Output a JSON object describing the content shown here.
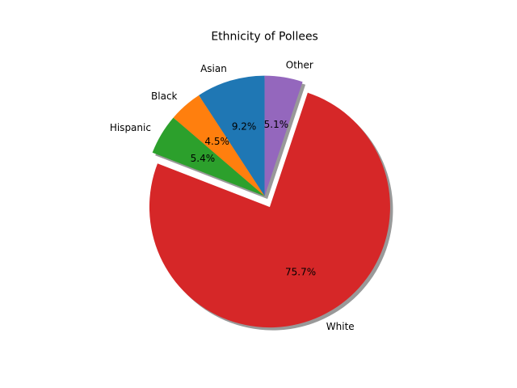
{
  "chart_data": {
    "type": "pie",
    "title": "Ethnicity of Pollees",
    "categories": [
      "Asian",
      "Black",
      "Hispanic",
      "White",
      "Other"
    ],
    "values": [
      9.2,
      4.5,
      5.4,
      75.7,
      5.1
    ],
    "value_labels": [
      "9.2%",
      "4.5%",
      "5.4%",
      "75.7%",
      "5.1%"
    ],
    "colors": [
      "#1f77b4",
      "#ff7f0e",
      "#2ca02c",
      "#d62728",
      "#9467bd"
    ],
    "explode": [
      0,
      0,
      0,
      0.1,
      0
    ],
    "shadow": true,
    "start_angle_deg": 90,
    "direction": "counterclockwise"
  }
}
